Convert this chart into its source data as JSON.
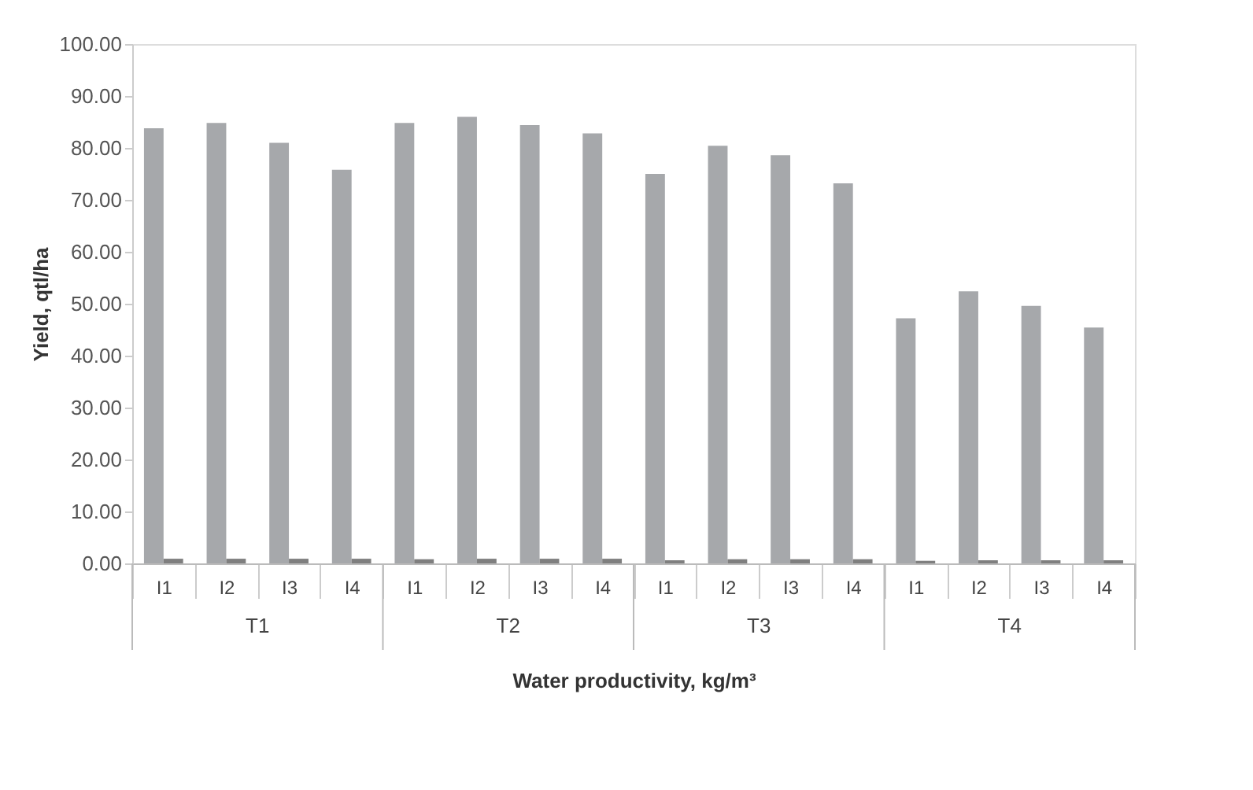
{
  "chart_data": {
    "type": "bar",
    "xlabel": "Water productivity, kg/m³",
    "ylabel": "Yield, qtl/ha",
    "categories": [
      "I1",
      "I2",
      "I3",
      "I4",
      "I1",
      "I2",
      "I3",
      "I4",
      "I1",
      "I2",
      "I3",
      "I4",
      "I1",
      "I2",
      "I3",
      "I4"
    ],
    "series": [
      {
        "color": "#a6a8ab",
        "values": [
          83.8,
          84.8,
          81.0,
          75.8,
          84.8,
          86.0,
          84.4,
          82.8,
          75.0,
          80.4,
          78.6,
          73.2,
          47.2,
          52.4,
          49.6,
          45.4
        ]
      },
      {
        "color": "#7f7f7f",
        "values": [
          0.9,
          0.9,
          0.9,
          0.9,
          0.8,
          0.9,
          0.9,
          0.9,
          0.6,
          0.8,
          0.8,
          0.8,
          0.5,
          0.6,
          0.6,
          0.6
        ]
      }
    ],
    "annotations": [
      "T1",
      "T2",
      "T3",
      "T4"
    ],
    "ylim": [
      0,
      100
    ],
    "yticks": [
      {
        "value": 0,
        "label": "0.00"
      },
      {
        "value": 10,
        "label": "10.00"
      },
      {
        "value": 20,
        "label": "20.00"
      },
      {
        "value": 30,
        "label": "30.00"
      },
      {
        "value": 40,
        "label": "40.00"
      },
      {
        "value": 50,
        "label": "50.00"
      },
      {
        "value": 60,
        "label": "60.00"
      },
      {
        "value": 70,
        "label": "70.00"
      },
      {
        "value": 80,
        "label": "80.00"
      },
      {
        "value": 90,
        "label": "90.00"
      },
      {
        "value": 100,
        "label": "100.00"
      }
    ],
    "grid": false,
    "legend": false
  }
}
